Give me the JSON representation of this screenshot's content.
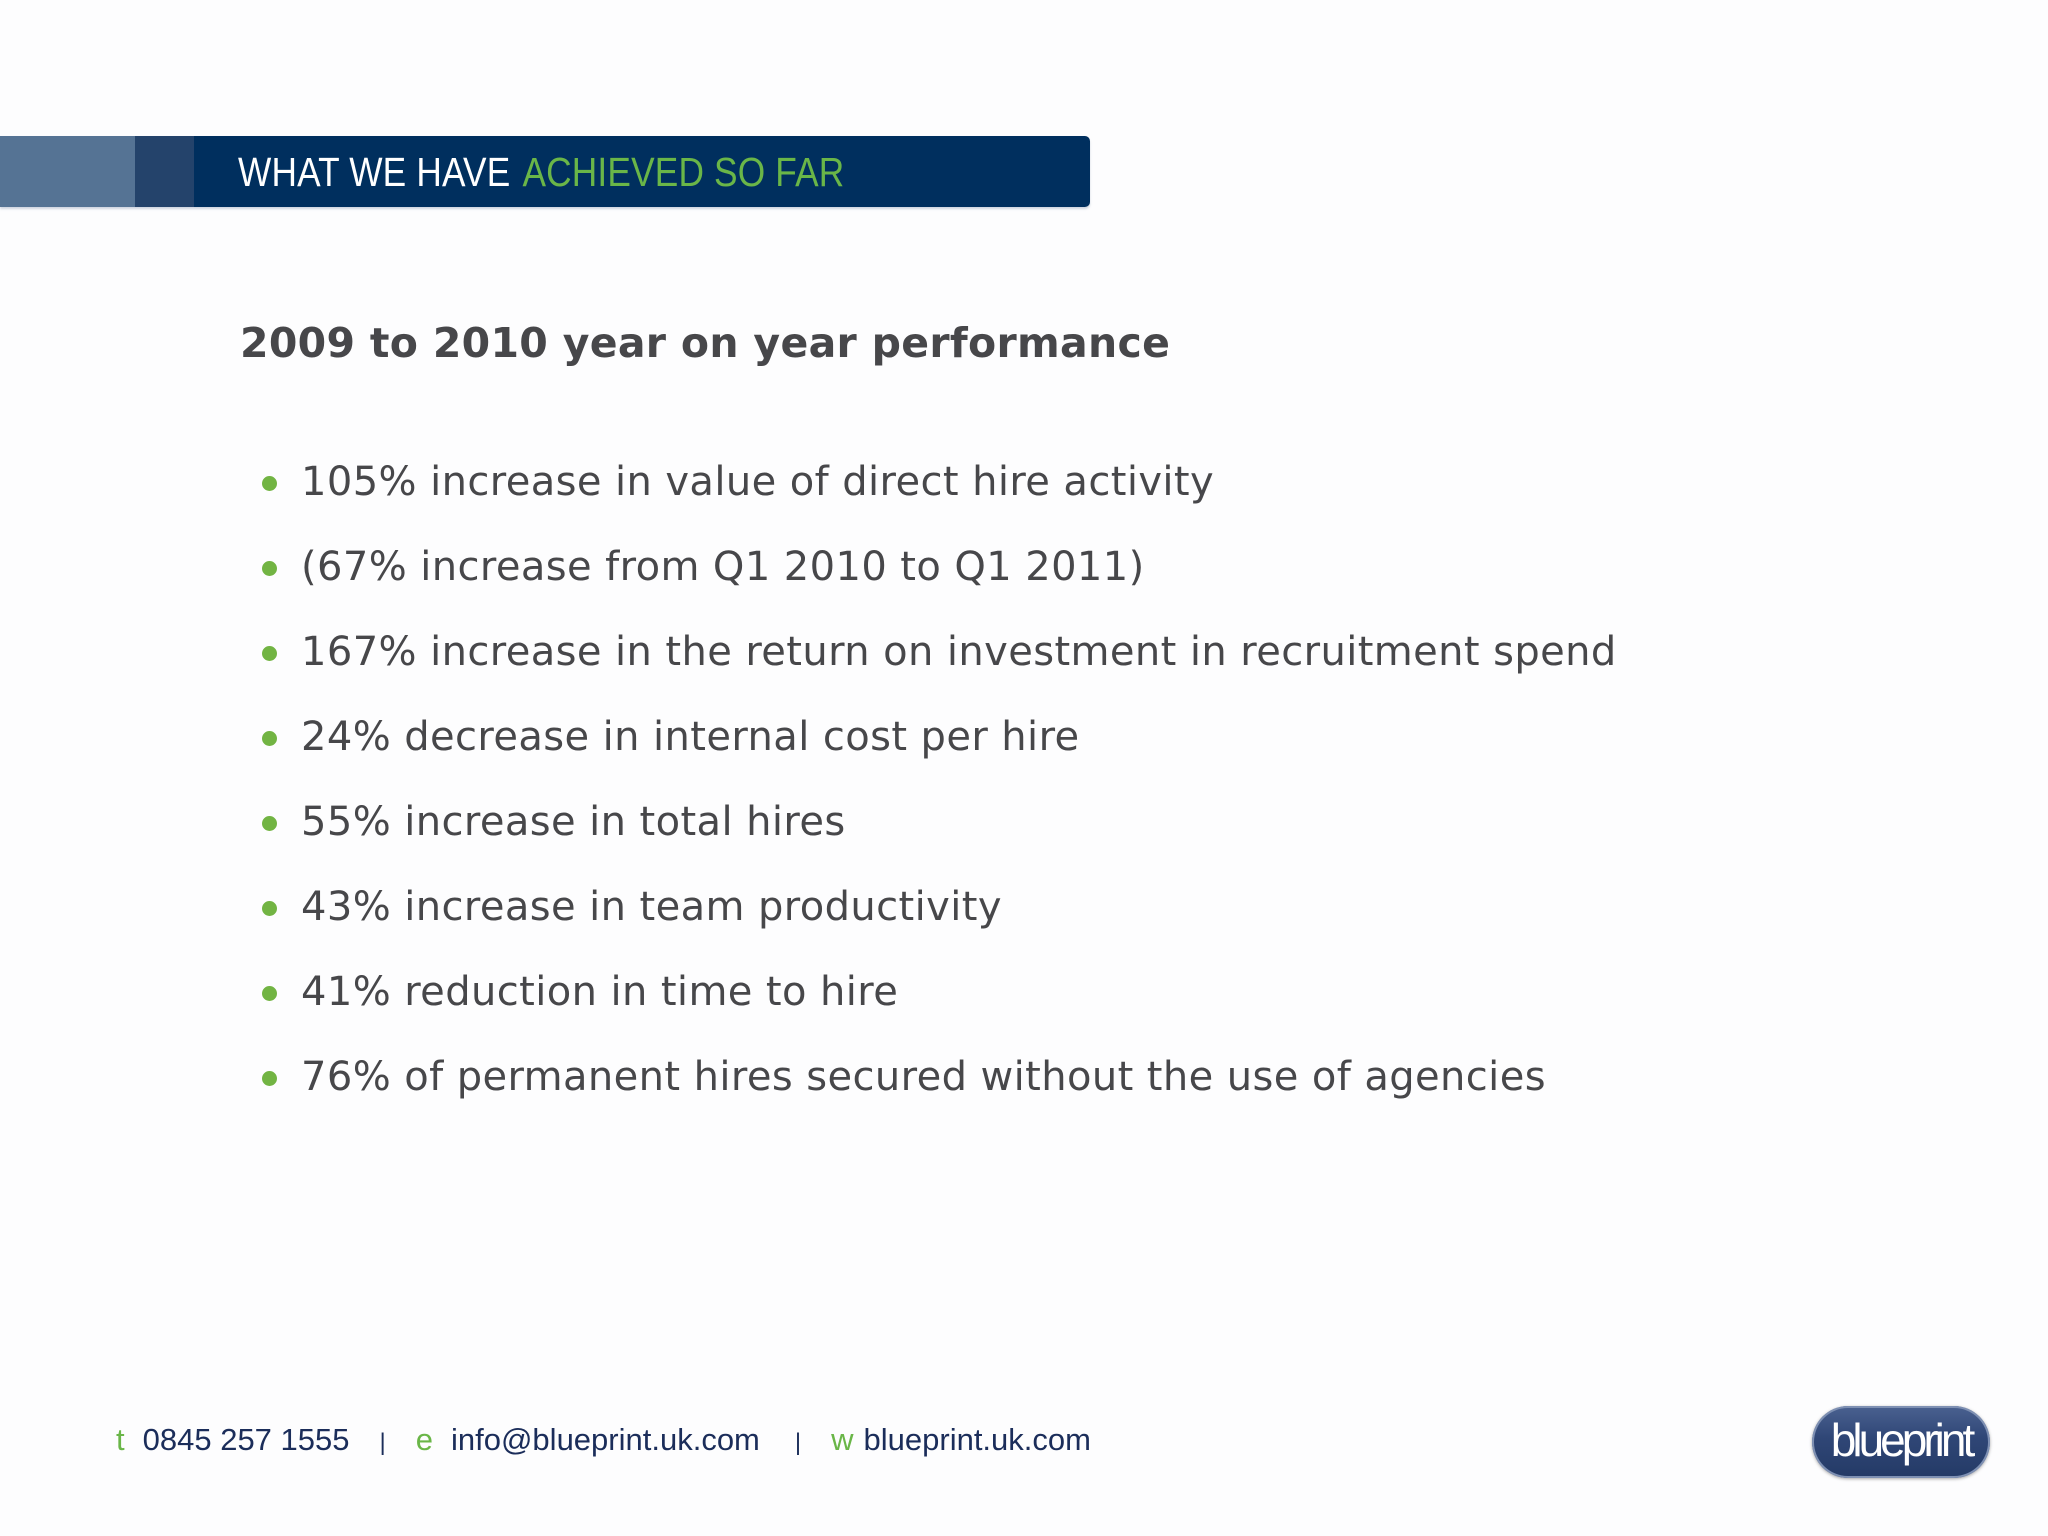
{
  "banner": {
    "title_white": "WHAT WE HAVE",
    "title_green": "ACHIEVED SO FAR",
    "colors": {
      "segment_light": "#557394",
      "segment_mid": "#24436b",
      "segment_dark": "#002f5e",
      "accent_green": "#6ab648"
    }
  },
  "heading": "2009 to 2010 year on year performance",
  "bullets": [
    "105% increase in value of direct hire activity",
    "(67% increase from Q1 2010 to Q1 2011)",
    "167% increase in the return on investment in recruitment spend",
    "24% decrease in internal cost per hire",
    "55% increase in total hires",
    "43% increase in team productivity",
    "41% reduction in time to hire",
    "76% of permanent hires secured without the use of agencies"
  ],
  "footer": {
    "phone_prefix": "t",
    "phone": "0845 257 1555",
    "separator": "|",
    "email_prefix": "e",
    "email": "info@blueprint.uk.com",
    "web_prefix": "w",
    "website": "blueprint.uk.com"
  },
  "logo": {
    "text": "blueprint"
  },
  "colors": {
    "text": "#47474a",
    "bullet": "#72b443",
    "footer_text": "#1b2d5a"
  }
}
